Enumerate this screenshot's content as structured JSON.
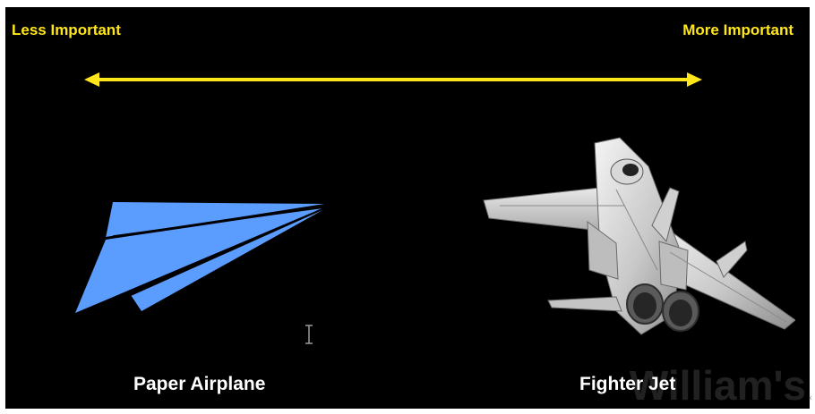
{
  "slide": {
    "scale_left_label": "Less Important",
    "scale_right_label": "More Important",
    "left_caption": "Paper Airplane",
    "right_caption": "Fighter Jet",
    "watermark": "William's"
  },
  "colors": {
    "background": "#000000",
    "scale_accent": "#ffe61a",
    "caption_text": "#ffffff",
    "paper_airplane": "#5b9dff"
  },
  "icons": {
    "scale_arrow": "double-headed-arrow",
    "left_image": "paper-airplane",
    "right_image": "fighter-jet",
    "cursor": "text-i-beam-cursor"
  }
}
